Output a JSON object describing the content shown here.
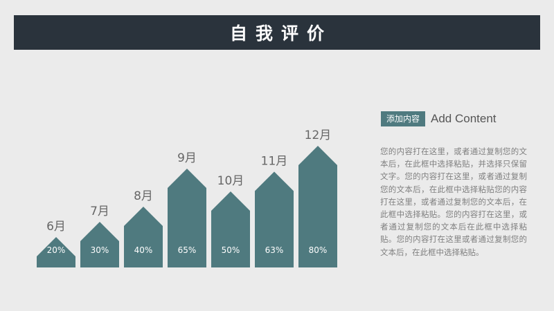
{
  "header": {
    "title": "自我评价"
  },
  "chart_data": {
    "type": "bar",
    "categories": [
      "6月",
      "7月",
      "8月",
      "9月",
      "10月",
      "11月",
      "12月"
    ],
    "values": [
      20,
      30,
      40,
      65,
      50,
      63,
      80
    ],
    "labels": [
      "20%",
      "30%",
      "40%",
      "65%",
      "50%",
      "63%",
      "80%"
    ],
    "ylim": [
      0,
      100
    ],
    "colors": {
      "bar": "#4f7a7f",
      "bar_label": "#ffffff",
      "category_label": "#666666"
    }
  },
  "side_panel": {
    "tag": "添加内容",
    "heading": "Add Content",
    "body": "您的内容打在这里，或者通过复制您的文本后，在此框中选择粘贴，并选择只保留文字。您的内容打在这里，或者通过复制您的文本后，在此框中选择粘贴您的内容打在这里，或者通过复制您的文本后，在此框中选择粘贴。您的内容打在这里，或者通过复制您的文本后在此框中选择粘贴。您的内容打在这里或者通过复制您的文本后，在此框中选择粘贴。"
  }
}
